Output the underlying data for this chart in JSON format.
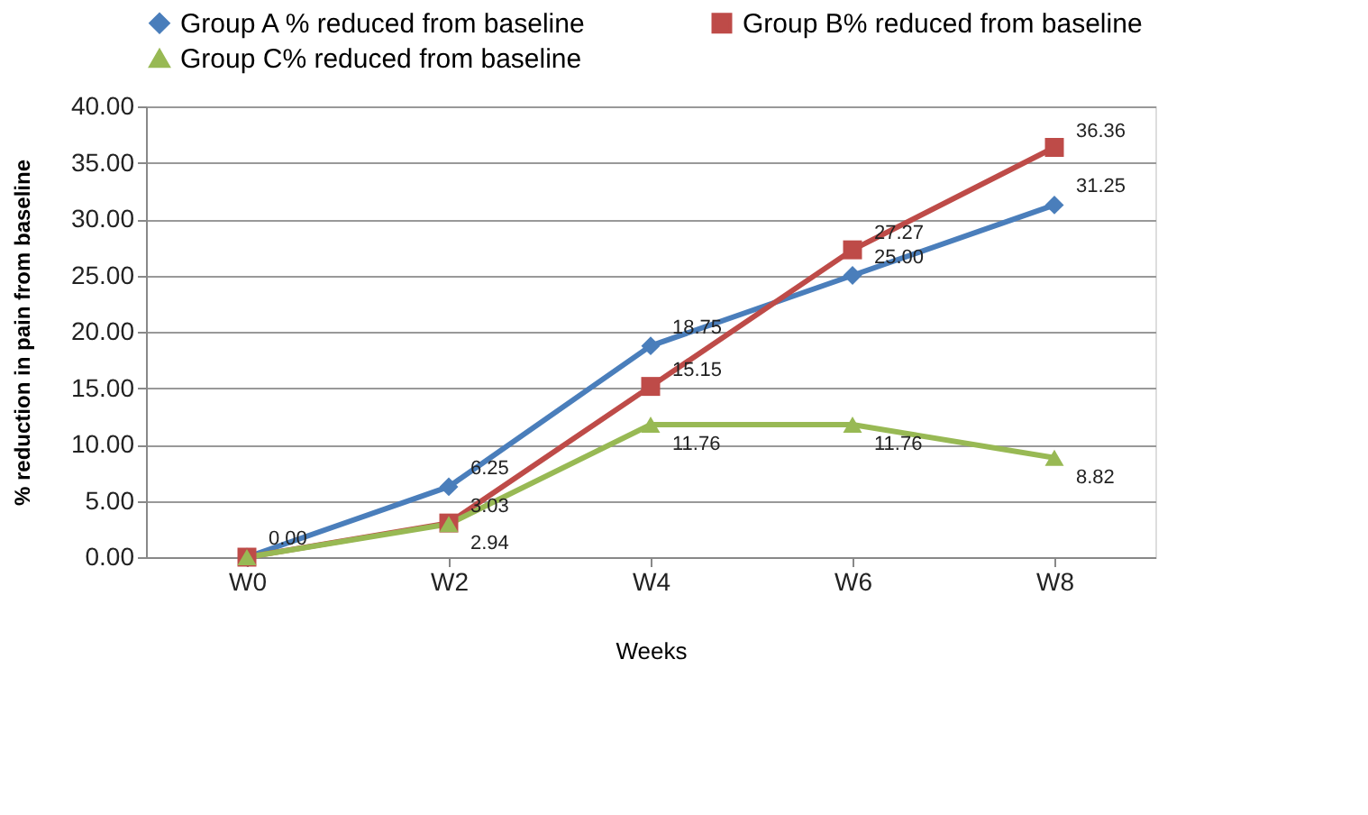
{
  "chart_data": {
    "type": "line",
    "categories": [
      "W0",
      "W2",
      "W4",
      "W6",
      "W8"
    ],
    "series": [
      {
        "name": "Group A % reduced from baseline",
        "color": "#4a7ebb",
        "marker": "diamond",
        "values": [
          0.0,
          6.25,
          18.75,
          25.0,
          31.25
        ],
        "value_labels": [
          "0.00",
          "6.25",
          "18.75",
          "25.00",
          "31.25"
        ]
      },
      {
        "name": "Group B% reduced from baseline",
        "color": "#be4b48",
        "marker": "square",
        "values": [
          0.0,
          3.03,
          15.15,
          27.27,
          36.36
        ],
        "value_labels": [
          null,
          "3.03",
          "15.15",
          "27.27",
          "36.36"
        ]
      },
      {
        "name": "Group C%  reduced  from baseline",
        "color": "#98b954",
        "marker": "triangle",
        "values": [
          0.0,
          2.94,
          11.76,
          11.76,
          8.82
        ],
        "value_labels": [
          null,
          "2.94",
          "11.76",
          "11.76",
          "8.82"
        ]
      }
    ],
    "xlabel": "Weeks",
    "ylabel": "% reduction in pain from baseline",
    "ylim": [
      0,
      40
    ],
    "yticks": [
      {
        "value": 0,
        "label": "0.00"
      },
      {
        "value": 5,
        "label": "5.00"
      },
      {
        "value": 10,
        "label": "10.00"
      },
      {
        "value": 15,
        "label": "15.00"
      },
      {
        "value": 20,
        "label": "20.00"
      },
      {
        "value": 25,
        "label": "25.00"
      },
      {
        "value": 30,
        "label": "30.00"
      },
      {
        "value": 35,
        "label": "35.00"
      },
      {
        "value": 40,
        "label": "40.00"
      }
    ],
    "grid": "y",
    "legend": "top",
    "line_style": "solid"
  }
}
